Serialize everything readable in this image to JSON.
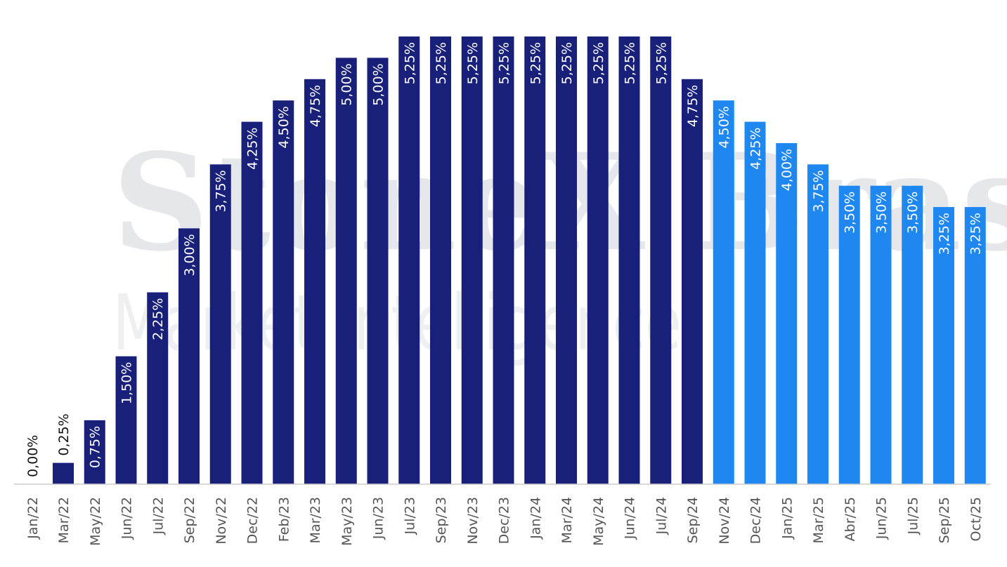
{
  "chart_data": {
    "type": "bar",
    "watermark": {
      "line1": "StoneX Brasil",
      "line2": "Market Intelligence"
    },
    "categories": [
      "Jan/22",
      "Mar/22",
      "May/22",
      "Jun/22",
      "Jul/22",
      "Sep/22",
      "Nov/22",
      "Dec/22",
      "Feb/23",
      "Mar/23",
      "May/23",
      "Jun/23",
      "Jul/23",
      "Sep/23",
      "Nov/23",
      "Dec/23",
      "Jan/24",
      "Mar/24",
      "May/24",
      "Jun/24",
      "Jul/24",
      "Sep/24",
      "Nov/24",
      "Dec/24",
      "Jan/25",
      "Mar/25",
      "Abr/25",
      "Jun/25",
      "Jul/25",
      "Sep/25",
      "Oct/25"
    ],
    "values": [
      0.0,
      0.25,
      0.75,
      1.5,
      2.25,
      3.0,
      3.75,
      4.25,
      4.5,
      4.75,
      5.0,
      5.0,
      5.25,
      5.25,
      5.25,
      5.25,
      5.25,
      5.25,
      5.25,
      5.25,
      5.25,
      4.75,
      4.5,
      4.25,
      4.0,
      3.75,
      3.5,
      3.5,
      3.5,
      3.25,
      3.25
    ],
    "labels": [
      "0,00%",
      "0,25%",
      "0,75%",
      "1,50%",
      "2,25%",
      "3,00%",
      "3,75%",
      "4,25%",
      "4,50%",
      "4,75%",
      "5,00%",
      "5,00%",
      "5,25%",
      "5,25%",
      "5,25%",
      "5,25%",
      "5,25%",
      "5,25%",
      "5,25%",
      "5,25%",
      "5,25%",
      "4,75%",
      "4,50%",
      "4,25%",
      "4,00%",
      "3,75%",
      "3,50%",
      "3,50%",
      "3,50%",
      "3,25%",
      "3,25%"
    ],
    "projection_start_index": 22,
    "colors": {
      "actual": "#18207a",
      "projected": "#1f88f0",
      "axis": "#cccccc"
    },
    "ylim": [
      0,
      5.25
    ],
    "grid": false,
    "legend": "none"
  }
}
